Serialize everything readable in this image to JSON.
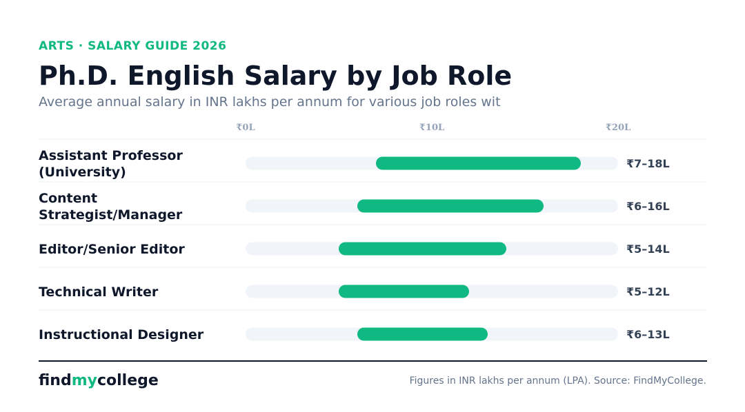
{
  "header": {
    "eyebrow": "ARTS · SALARY GUIDE 2026",
    "title": "Ph.D. English Salary by Job Role",
    "subtitle": "Average annual salary in INR lakhs per annum for various job roles wit"
  },
  "colors": {
    "accent": "#10b981",
    "track": "#f1f5f9",
    "text_dark": "#0f172a",
    "muted": "#64748b"
  },
  "chart_data": {
    "type": "bar",
    "orientation": "horizontal-range",
    "title": "Ph.D. English Salary by Job Role",
    "x_ticks": [
      {
        "value": 0,
        "label": "₹0L"
      },
      {
        "value": 10,
        "label": "₹10L"
      },
      {
        "value": 20,
        "label": "₹20L"
      }
    ],
    "xlim": [
      0,
      20
    ],
    "grid": false,
    "legend": "none",
    "categories": [
      {
        "label_lines": [
          "Assistant Professor",
          "(University)"
        ],
        "min": 7,
        "max": 18,
        "value_label": "₹7–18L"
      },
      {
        "label_lines": [
          "Content",
          "Strategist/Manager"
        ],
        "min": 6,
        "max": 16,
        "value_label": "₹6–16L"
      },
      {
        "label_lines": [
          "Editor/Senior Editor"
        ],
        "min": 5,
        "max": 14,
        "value_label": "₹5–14L"
      },
      {
        "label_lines": [
          "Technical Writer"
        ],
        "min": 5,
        "max": 12,
        "value_label": "₹5–12L"
      },
      {
        "label_lines": [
          "Instructional Designer"
        ],
        "min": 6,
        "max": 13,
        "value_label": "₹6–13L"
      }
    ]
  },
  "footer": {
    "brand_prefix": "find",
    "brand_accent": "my",
    "brand_suffix": "college",
    "source": "Figures in INR lakhs per annum (LPA). Source: FindMyCollege."
  }
}
